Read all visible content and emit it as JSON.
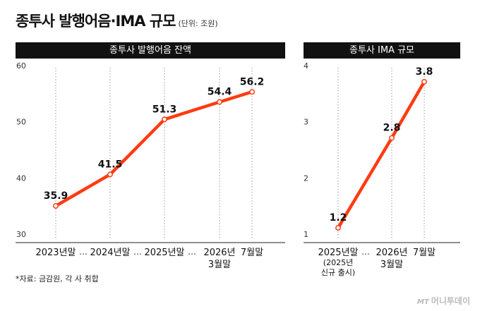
{
  "title": "종투사 발행어음·IMA 규모",
  "unit": "(단위: 조원)",
  "note": "*자료: 금감원, 각 사 취합",
  "brand": {
    "mark": "MT",
    "name": "머니투데이"
  },
  "colors": {
    "line": "#ff3b12",
    "header": "#111111",
    "grid": "#999999"
  },
  "chart_data": [
    {
      "type": "line",
      "title": "종투사 발행어음 잔액",
      "categories": [
        "2023년말",
        "2024년말",
        "2025년말",
        "2026년 3월말",
        "7월말"
      ],
      "values": [
        35.9,
        41.5,
        51.3,
        54.4,
        56.2
      ],
      "value_labels": [
        "35.9",
        "41.5",
        "51.3",
        "54.4",
        "56.2"
      ],
      "ylim": [
        30,
        60
      ],
      "yticks": [
        30,
        40,
        50,
        60
      ],
      "breaks": [
        "…",
        "…",
        "…"
      ]
    },
    {
      "type": "line",
      "title": "종투사 IMA 규모",
      "categories": [
        "2025년말 (2025년 신규 출시)",
        "2026년 3월말",
        "7월말"
      ],
      "values": [
        1.2,
        2.8,
        3.8
      ],
      "value_labels": [
        "1.2",
        "2.8",
        "3.8"
      ],
      "ylim": [
        1,
        4
      ],
      "yticks": [
        1,
        2,
        3,
        4
      ],
      "breaks": [
        "…"
      ]
    }
  ],
  "left_xlabels": [
    [
      "2023년말"
    ],
    [
      "2024년말"
    ],
    [
      "2025년말"
    ],
    [
      "2026년",
      "3월말"
    ],
    [
      "7월말"
    ]
  ],
  "right_xlabels": [
    [
      "2025년말",
      "(2025년",
      "신규 출시)"
    ],
    [
      "2026년",
      "3월말"
    ],
    [
      "7월말"
    ]
  ]
}
